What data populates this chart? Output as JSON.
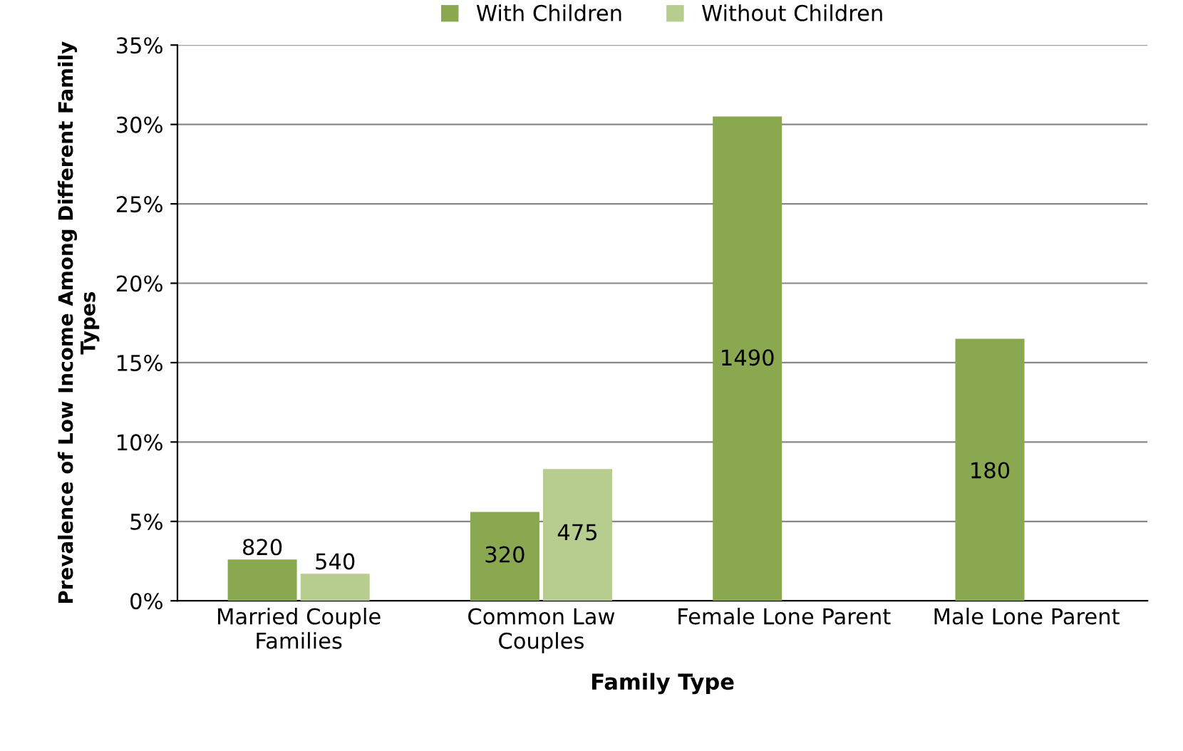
{
  "chart_data": {
    "type": "bar",
    "xlabel": "Family Type",
    "ylabel": "Prevalence of Low Income Among Different Family\nTypes",
    "categories": [
      "Married Couple\nFamilies",
      "Common Law\nCouples",
      "Female Lone Parent",
      "Male Lone Parent"
    ],
    "series": [
      {
        "name": "With Children",
        "color": "#8aa84f",
        "values": [
          2.6,
          5.6,
          30.5,
          16.5
        ]
      },
      {
        "name": "Without Children",
        "color": "#b7cc8f",
        "values": [
          1.7,
          8.3,
          null,
          null
        ]
      }
    ],
    "annotations": [
      {
        "text": "820",
        "x": "Married Couple\nFamilies",
        "y": 2.6
      },
      {
        "text": "540",
        "x": "Married Couple\nFamilies",
        "y": 1.7
      },
      {
        "text": "320",
        "x": "Common Law\nCouples",
        "y": 2.8
      },
      {
        "text": "475",
        "x": "Common Law\nCouples",
        "y": 4.2
      },
      {
        "text": "1490",
        "x": "Female Lone Parent",
        "y": 15.2
      },
      {
        "text": "180",
        "x": "Male Lone Parent",
        "y": 8.1
      }
    ],
    "ylim": [
      0,
      35
    ],
    "yticks": [
      {
        "value": 0,
        "label": "0%"
      },
      {
        "value": 5,
        "label": "5%"
      },
      {
        "value": 10,
        "label": "10%"
      },
      {
        "value": 15,
        "label": "15%"
      },
      {
        "value": 20,
        "label": "20%"
      },
      {
        "value": 25,
        "label": "25%"
      },
      {
        "value": 30,
        "label": "30%"
      },
      {
        "value": 35,
        "label": "35%"
      }
    ],
    "grid": "y",
    "legend": "top"
  }
}
